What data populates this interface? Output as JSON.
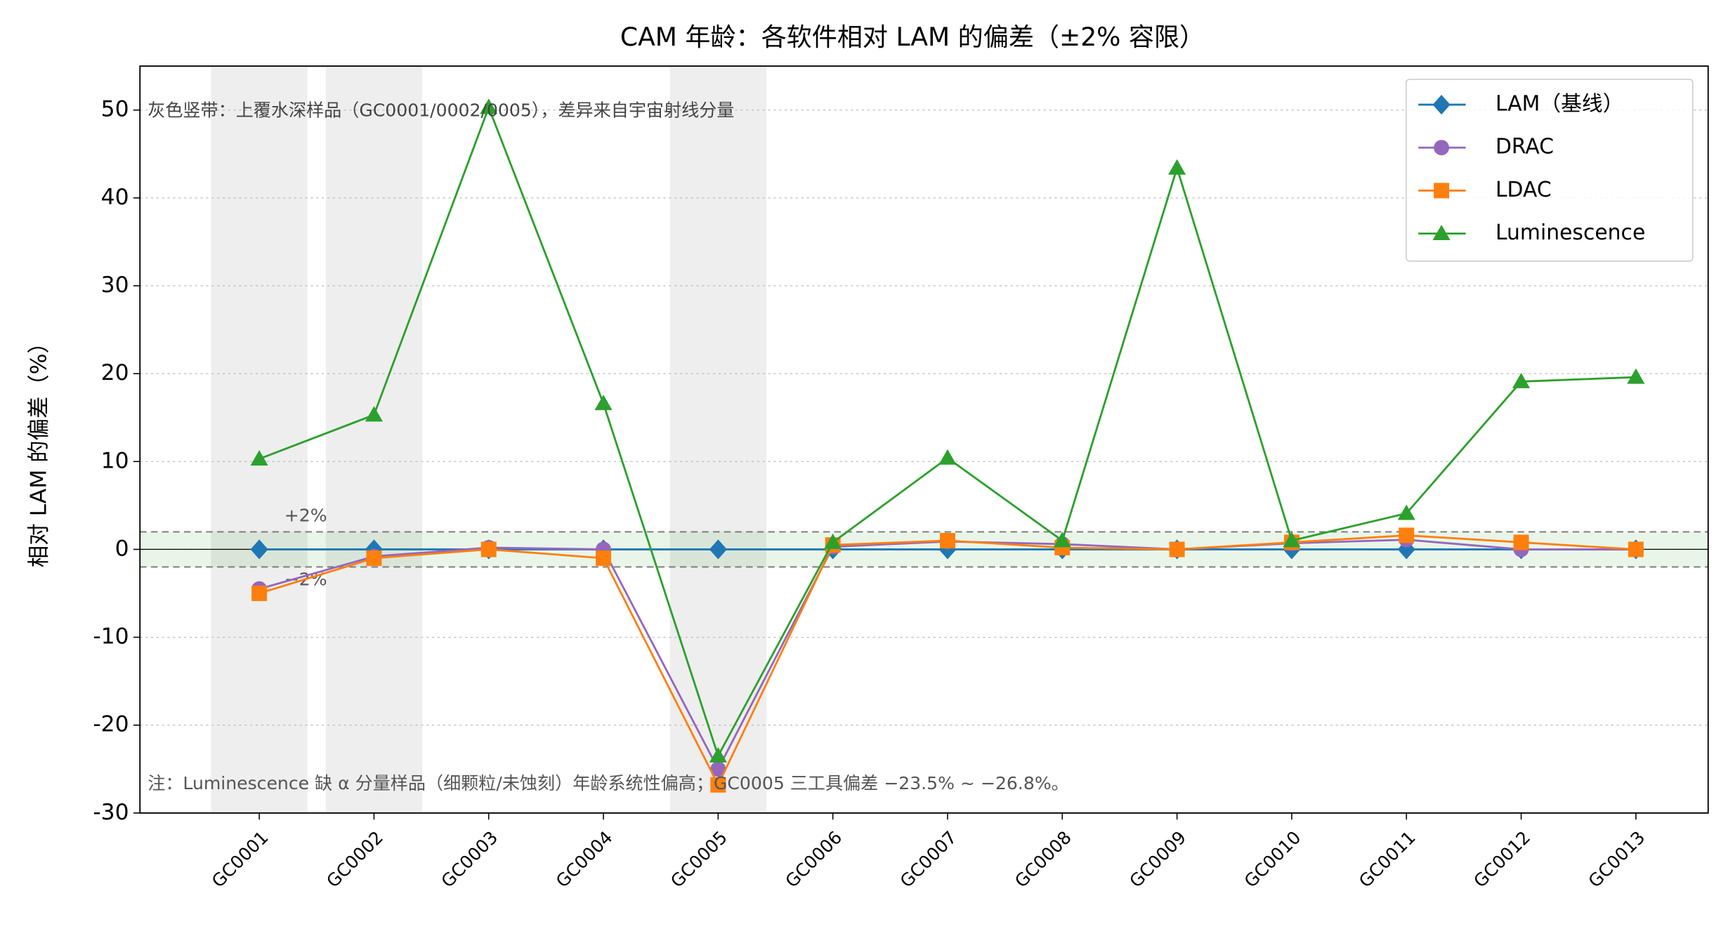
{
  "chart_data": {
    "type": "line",
    "title": "CAM 年龄：各软件相对 LAM 的偏差（±2% 容限）",
    "y_label": "相对 LAM 的偏差（%）",
    "categories": [
      "GC0001",
      "GC0002",
      "GC0003",
      "GC0004",
      "GC0005",
      "GC0006",
      "GC0007",
      "GC0008",
      "GC0009",
      "GC0010",
      "GC0011",
      "GC0012",
      "GC0013"
    ],
    "series": [
      {
        "name": "LAM（基线）",
        "color": "#1f77b4",
        "marker": "diamond",
        "values": [
          0,
          0,
          0,
          0,
          0,
          0,
          0,
          0,
          0,
          0,
          0,
          0,
          0
        ]
      },
      {
        "name": "DRAC",
        "color": "#9467bd",
        "marker": "circle",
        "values": [
          -4.5,
          -0.8,
          0.2,
          0,
          -25.0,
          0.3,
          0.9,
          0.6,
          0,
          0.7,
          1.1,
          0,
          0
        ]
      },
      {
        "name": "LDAC",
        "color": "#ff7f0e",
        "marker": "square",
        "values": [
          -5,
          -1,
          0,
          -1,
          -26.8,
          0.5,
          1,
          0.2,
          0,
          0.8,
          1.6,
          0.8,
          0
        ]
      },
      {
        "name": "Luminescence",
        "color": "#2ca02c",
        "marker": "triangle",
        "values": [
          10.3,
          15.3,
          50.3,
          16.6,
          -23.5,
          0.8,
          10.4,
          1,
          43.4,
          1,
          4.1,
          19.1,
          19.6
        ]
      }
    ],
    "tolerance": [
      2,
      -2
    ],
    "tolerance_labels": [
      "+2%",
      "−2%"
    ],
    "shaded_categories": [
      "GC0001",
      "GC0002",
      "GC0005"
    ],
    "annotations": [
      "灰色竖带：上覆水深样品（GC0001/0002/0005），差异来自宇宙射线分量",
      "注：Luminescence 缺 α 分量样品（细颗粒/未蚀刻）年龄系统性偏高；GC0005 三工具偏差 −23.5% ~ −26.8%。"
    ],
    "ylim": [
      -30,
      55
    ],
    "yticks": [
      -30,
      -20,
      -10,
      0,
      10,
      20,
      30,
      40,
      50
    ],
    "grid": true,
    "legend": "upper right"
  }
}
